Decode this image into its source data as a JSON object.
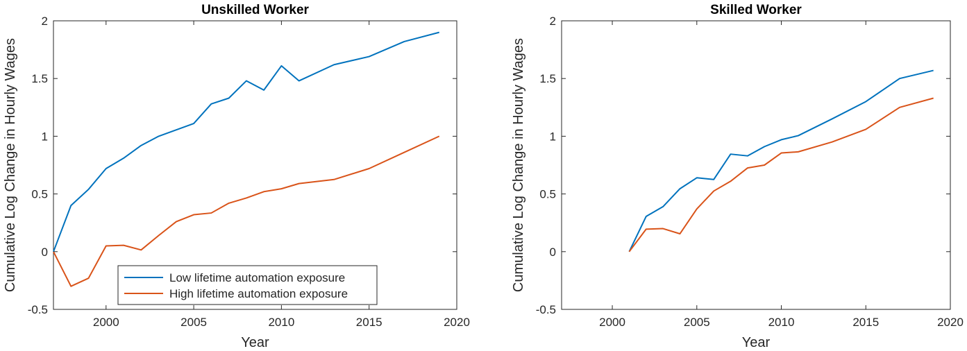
{
  "chart_data": [
    {
      "type": "line",
      "title": "Unskilled Worker",
      "xlabel": "Year",
      "ylabel": "Cumulative Log Change in Hourly Wages",
      "xlim": [
        1997,
        2020
      ],
      "ylim": [
        -0.5,
        2
      ],
      "xticks": [
        2000,
        2005,
        2010,
        2015,
        2020
      ],
      "yticks": [
        -0.5,
        0,
        0.5,
        1,
        1.5,
        2
      ],
      "xtick_labels": [
        "2000",
        "2005",
        "2010",
        "2015",
        "2020"
      ],
      "ytick_labels": [
        "-0.5",
        "0",
        "0.5",
        "1",
        "1.5",
        "2"
      ],
      "grid": false,
      "legend": "lower-center",
      "series": [
        {
          "name": "Low lifetime automation exposure",
          "color": "#0072BD",
          "x": [
            1997,
            1998,
            1999,
            2000,
            2001,
            2002,
            2003,
            2005,
            2006,
            2007,
            2008,
            2009,
            2010,
            2011,
            2013,
            2015,
            2017,
            2019
          ],
          "y": [
            0.0,
            0.4,
            0.54,
            0.72,
            0.81,
            0.92,
            1.0,
            1.11,
            1.28,
            1.33,
            1.48,
            1.4,
            1.61,
            1.48,
            1.62,
            1.69,
            1.82,
            1.9
          ]
        },
        {
          "name": "High lifetime automation exposure",
          "color": "#D95319",
          "x": [
            1997,
            1998,
            1999,
            2000,
            2001,
            2002,
            2003,
            2004,
            2005,
            2006,
            2007,
            2008,
            2009,
            2010,
            2011,
            2013,
            2015,
            2017,
            2019
          ],
          "y": [
            0.0,
            -0.3,
            -0.23,
            0.05,
            0.055,
            0.015,
            0.14,
            0.26,
            0.32,
            0.335,
            0.42,
            0.465,
            0.52,
            0.545,
            0.59,
            0.625,
            0.72,
            0.86,
            1.0
          ]
        }
      ]
    },
    {
      "type": "line",
      "title": "Skilled Worker",
      "xlabel": "Year",
      "ylabel": "Cumulative Log Change in Hourly Wages",
      "xlim": [
        1997,
        2020
      ],
      "ylim": [
        -0.5,
        2
      ],
      "xticks": [
        2000,
        2005,
        2010,
        2015,
        2020
      ],
      "yticks": [
        -0.5,
        0,
        0.5,
        1,
        1.5,
        2
      ],
      "xtick_labels": [
        "2000",
        "2005",
        "2010",
        "2015",
        "2020"
      ],
      "ytick_labels": [
        "-0.5",
        "0",
        "0.5",
        "1",
        "1.5",
        "2"
      ],
      "grid": false,
      "series": [
        {
          "name": "Low lifetime automation exposure",
          "color": "#0072BD",
          "x": [
            2001,
            2002,
            2003,
            2004,
            2005,
            2006,
            2007,
            2008,
            2009,
            2010,
            2011,
            2013,
            2015,
            2017,
            2019
          ],
          "y": [
            0.0,
            0.305,
            0.39,
            0.545,
            0.64,
            0.625,
            0.845,
            0.83,
            0.91,
            0.97,
            1.005,
            1.15,
            1.3,
            1.5,
            1.57
          ]
        },
        {
          "name": "High lifetime automation exposure",
          "color": "#D95319",
          "x": [
            2001,
            2002,
            2003,
            2004,
            2005,
            2006,
            2007,
            2008,
            2009,
            2010,
            2011,
            2013,
            2015,
            2017,
            2019
          ],
          "y": [
            0.0,
            0.195,
            0.2,
            0.155,
            0.37,
            0.525,
            0.61,
            0.725,
            0.75,
            0.855,
            0.865,
            0.95,
            1.06,
            1.25,
            1.33
          ]
        }
      ]
    }
  ]
}
